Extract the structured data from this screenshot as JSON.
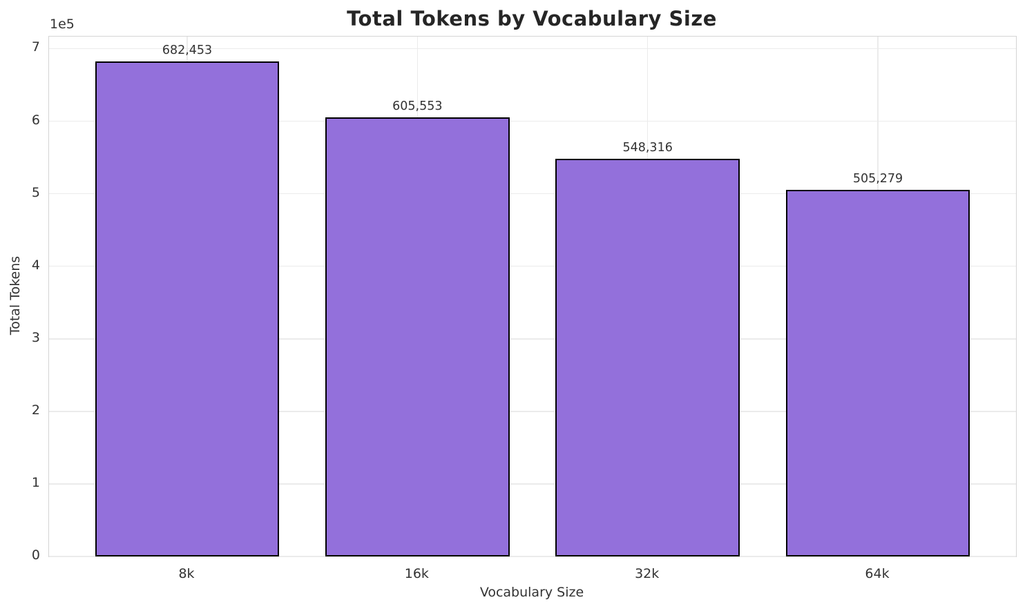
{
  "chart_data": {
    "type": "bar",
    "title": "Total Tokens by Vocabulary Size",
    "xlabel": "Vocabulary Size",
    "ylabel": "Total Tokens",
    "categories": [
      "8k",
      "16k",
      "32k",
      "64k"
    ],
    "values": [
      682453,
      605553,
      548316,
      505279
    ],
    "value_labels": [
      "682,453",
      "605,553",
      "548,316",
      "505,279"
    ],
    "yticks": [
      0,
      1,
      2,
      3,
      4,
      5,
      6,
      7
    ],
    "ytick_unit": 100000,
    "y_offset_text": "1e5",
    "ylim": [
      0,
      716576
    ],
    "grid": true,
    "legend": "none",
    "colors": {
      "bar_fill": "#9370DB",
      "bar_edge": "#000000",
      "grid_line": "#ebebeb",
      "spine": "#d4d4d4",
      "title_text": "#262626",
      "tick_text": "#333333"
    }
  }
}
